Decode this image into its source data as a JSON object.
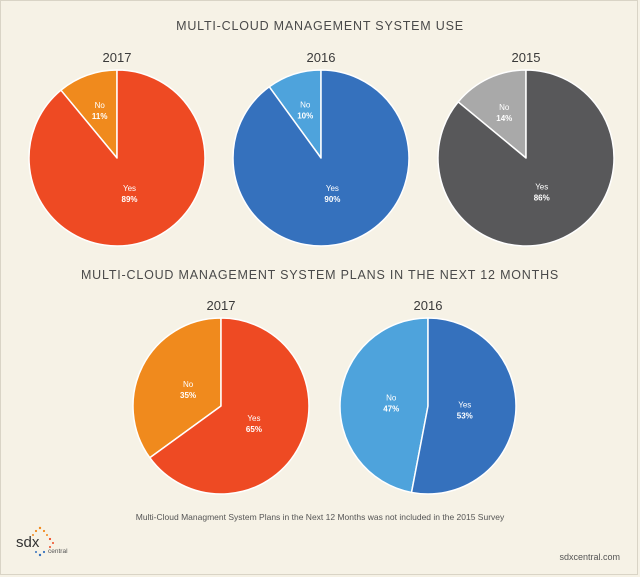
{
  "titles": {
    "use": "MULTI-CLOUD MANAGEMENT SYSTEM USE",
    "plans": "MULTI-CLOUD MANAGEMENT SYSTEM PLANS IN THE NEXT 12 MONTHS"
  },
  "footnote": "Multi-Cloud Managment System Plans in the Next 12 Months was not included in the 2015 Survey",
  "site": "sdxcentral.com",
  "logo": {
    "main": "sdx",
    "sub": "central"
  },
  "chart_data": [
    {
      "type": "pie",
      "group": "use",
      "title": "2017",
      "slices": [
        {
          "label": "No",
          "value": 11,
          "display": "11%",
          "color": "#f08a1d"
        },
        {
          "label": "Yes",
          "value": 89,
          "display": "89%",
          "color": "#ee4a23"
        }
      ]
    },
    {
      "type": "pie",
      "group": "use",
      "title": "2016",
      "slices": [
        {
          "label": "No",
          "value": 10,
          "display": "10%",
          "color": "#4ea3dc"
        },
        {
          "label": "Yes",
          "value": 90,
          "display": "90%",
          "color": "#3571bd"
        }
      ]
    },
    {
      "type": "pie",
      "group": "use",
      "title": "2015",
      "slices": [
        {
          "label": "No",
          "value": 14,
          "display": "14%",
          "color": "#a9a9a9"
        },
        {
          "label": "Yes",
          "value": 86,
          "display": "86%",
          "color": "#58585a"
        }
      ]
    },
    {
      "type": "pie",
      "group": "plans",
      "title": "2017",
      "slices": [
        {
          "label": "No",
          "value": 35,
          "display": "35%",
          "color": "#f08a1d"
        },
        {
          "label": "Yes",
          "value": 65,
          "display": "65%",
          "color": "#ee4a23"
        }
      ]
    },
    {
      "type": "pie",
      "group": "plans",
      "title": "2016",
      "slices": [
        {
          "label": "No",
          "value": 47,
          "display": "47%",
          "color": "#4ea3dc"
        },
        {
          "label": "Yes",
          "value": 53,
          "display": "53%",
          "color": "#3571bd"
        }
      ]
    }
  ]
}
